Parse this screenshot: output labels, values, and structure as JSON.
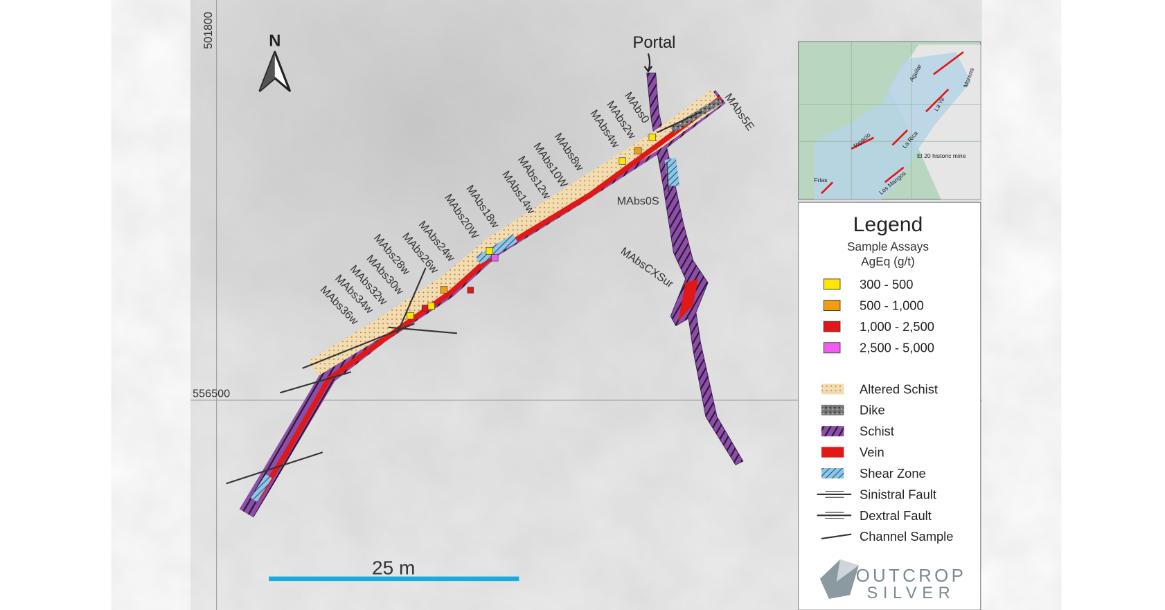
{
  "map": {
    "grid_labels": {
      "northing": "501800",
      "easting": "556500"
    },
    "north_label": "N",
    "portal_label": "Portal",
    "scale_label": "25 m",
    "sample_labels": [
      "MAbs0",
      "MAbs2w",
      "MAbs4w",
      "MAbs8w",
      "MAbs10W",
      "MAbs12w",
      "MAbs14w",
      "MAbs18w",
      "MAbs20W",
      "MAbs24w",
      "MAbs26w",
      "MAbs28w",
      "MAbs30w",
      "MAbs32w",
      "MAbs34w",
      "MAbs36w",
      "MAbs5E",
      "MAbs0S",
      "MAbsCXSur"
    ],
    "inset_labels": [
      "Aguilar",
      "Morena",
      "La Ye",
      "Topacio",
      "La Rica",
      "El 20 historic mine",
      "Los Mangos",
      "Frias"
    ]
  },
  "legend": {
    "title": "Legend",
    "subtitle": "Sample Assays",
    "units": "AgEq (g/t)",
    "assay_ranges": [
      "300 - 500",
      "500 - 1,000",
      "1,000 - 2,500",
      "2,500 - 5,000"
    ],
    "units_items": [
      "Altered Schist",
      "Dike",
      "Schist",
      "Vein",
      "Shear Zone",
      "Sinistral Fault",
      "Dextral Fault",
      "Channel Sample"
    ]
  },
  "logo": {
    "line1": "OUTCROP",
    "line2": "SILVER"
  }
}
